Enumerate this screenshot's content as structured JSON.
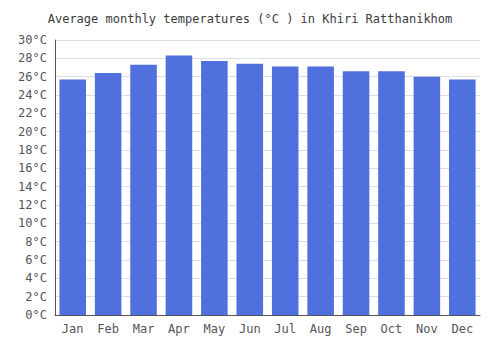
{
  "chart_data": {
    "type": "bar",
    "title": "Average monthly temperatures (°C ) in Khiri Ratthanikhom",
    "categories": [
      "Jan",
      "Feb",
      "Mar",
      "Apr",
      "May",
      "Jun",
      "Jul",
      "Aug",
      "Sep",
      "Oct",
      "Nov",
      "Dec"
    ],
    "values": [
      25.7,
      26.4,
      27.3,
      28.3,
      27.7,
      27.4,
      27.1,
      27.1,
      26.6,
      26.6,
      26.0,
      25.7
    ],
    "ylim": [
      0,
      30
    ],
    "yticks": [
      {
        "value": 0,
        "label": "0°C"
      },
      {
        "value": 2,
        "label": "2°C"
      },
      {
        "value": 4,
        "label": "4°C"
      },
      {
        "value": 6,
        "label": "6°C"
      },
      {
        "value": 8,
        "label": "8°C"
      },
      {
        "value": 10,
        "label": "10°C"
      },
      {
        "value": 12,
        "label": "12°C"
      },
      {
        "value": 14,
        "label": "14°C"
      },
      {
        "value": 16,
        "label": "16°C"
      },
      {
        "value": 18,
        "label": "18°C"
      },
      {
        "value": 20,
        "label": "20°C"
      },
      {
        "value": 22,
        "label": "22°C"
      },
      {
        "value": 24,
        "label": "24°C"
      },
      {
        "value": 26,
        "label": "26°C"
      },
      {
        "value": 28,
        "label": "28°C"
      },
      {
        "value": 30,
        "label": "30°C"
      }
    ],
    "grid": true
  }
}
